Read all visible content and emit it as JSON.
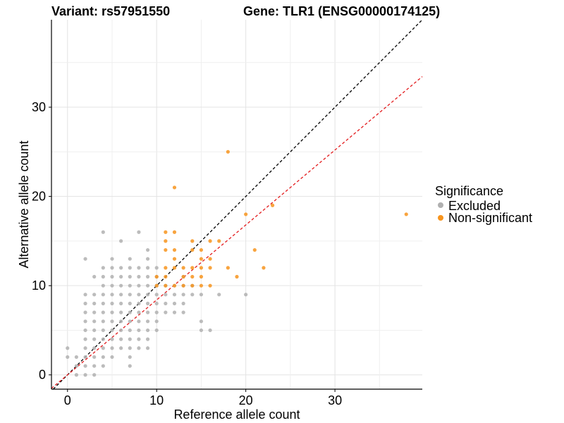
{
  "chart_data": {
    "type": "scatter",
    "title_variant": "Variant: rs57951550",
    "title_gene": "Gene: TLR1 (ENSG00000174125)",
    "xlabel": "Reference allele count",
    "ylabel": "Alternative allele count",
    "xlim": [
      -1.8,
      39.8
    ],
    "ylim": [
      -1.6,
      39.8
    ],
    "x_ticks": [
      0,
      10,
      20,
      30
    ],
    "y_ticks": [
      0,
      10,
      20,
      30
    ],
    "grid": true,
    "legend_position": "right",
    "legend_title": "Significance",
    "reference_lines": [
      {
        "name": "identity",
        "slope": 1.0,
        "intercept": 0,
        "color": "#000000",
        "style": "dashed"
      },
      {
        "name": "fit",
        "slope": 0.84,
        "intercept": 0,
        "color": "#e31a1c",
        "style": "dashed"
      }
    ],
    "series": [
      {
        "name": "Excluded",
        "color": "#b0b0b0",
        "points": [
          [
            0,
            3
          ],
          [
            0,
            2
          ],
          [
            1,
            2
          ],
          [
            1,
            1
          ],
          [
            1,
            0
          ],
          [
            2,
            2
          ],
          [
            2,
            1
          ],
          [
            2,
            0
          ],
          [
            2,
            3
          ],
          [
            2,
            4
          ],
          [
            2,
            5
          ],
          [
            2,
            6
          ],
          [
            2,
            7
          ],
          [
            2,
            8
          ],
          [
            2,
            9
          ],
          [
            2,
            13
          ],
          [
            3,
            0
          ],
          [
            3,
            1
          ],
          [
            3,
            2
          ],
          [
            3,
            3
          ],
          [
            3,
            4
          ],
          [
            3,
            5
          ],
          [
            3,
            6
          ],
          [
            3,
            7
          ],
          [
            3,
            8
          ],
          [
            3,
            9
          ],
          [
            3,
            11
          ],
          [
            4,
            1
          ],
          [
            4,
            2
          ],
          [
            4,
            3
          ],
          [
            4,
            4
          ],
          [
            4,
            5
          ],
          [
            4,
            6
          ],
          [
            4,
            7
          ],
          [
            4,
            8
          ],
          [
            4,
            9
          ],
          [
            4,
            10
          ],
          [
            4,
            11
          ],
          [
            4,
            12
          ],
          [
            4,
            16
          ],
          [
            5,
            2
          ],
          [
            5,
            3
          ],
          [
            5,
            4
          ],
          [
            5,
            5
          ],
          [
            5,
            6
          ],
          [
            5,
            7
          ],
          [
            5,
            8
          ],
          [
            5,
            9
          ],
          [
            5,
            10
          ],
          [
            5,
            11
          ],
          [
            5,
            12
          ],
          [
            5,
            13
          ],
          [
            6,
            3
          ],
          [
            6,
            4
          ],
          [
            6,
            5
          ],
          [
            6,
            6
          ],
          [
            6,
            7
          ],
          [
            6,
            8
          ],
          [
            6,
            9
          ],
          [
            6,
            10
          ],
          [
            6,
            11
          ],
          [
            6,
            12
          ],
          [
            6,
            15
          ],
          [
            7,
            1
          ],
          [
            7,
            2
          ],
          [
            7,
            3
          ],
          [
            7,
            4
          ],
          [
            7,
            5
          ],
          [
            7,
            6
          ],
          [
            7,
            7
          ],
          [
            7,
            8
          ],
          [
            7,
            9
          ],
          [
            7,
            10
          ],
          [
            7,
            11
          ],
          [
            7,
            12
          ],
          [
            7,
            13
          ],
          [
            8,
            3
          ],
          [
            8,
            4
          ],
          [
            8,
            5
          ],
          [
            8,
            6
          ],
          [
            8,
            7
          ],
          [
            8,
            8
          ],
          [
            8,
            9
          ],
          [
            8,
            10
          ],
          [
            8,
            11
          ],
          [
            8,
            12
          ],
          [
            8,
            16
          ],
          [
            9,
            3
          ],
          [
            9,
            4
          ],
          [
            9,
            5
          ],
          [
            9,
            6
          ],
          [
            9,
            7
          ],
          [
            9,
            8
          ],
          [
            9,
            9
          ],
          [
            9,
            10
          ],
          [
            9,
            11
          ],
          [
            9,
            12
          ],
          [
            9,
            13
          ],
          [
            9,
            14
          ],
          [
            10,
            5
          ],
          [
            10,
            6
          ],
          [
            10,
            7
          ],
          [
            10,
            8
          ],
          [
            10,
            9
          ],
          [
            10,
            10
          ],
          [
            10,
            11
          ],
          [
            10,
            12
          ],
          [
            11,
            7
          ],
          [
            11,
            8
          ],
          [
            11,
            9
          ],
          [
            11,
            10
          ],
          [
            12,
            7
          ],
          [
            12,
            8
          ],
          [
            12,
            9
          ],
          [
            12,
            10
          ],
          [
            13,
            7
          ],
          [
            13,
            8
          ],
          [
            13,
            9
          ],
          [
            13,
            10
          ],
          [
            13,
            11
          ],
          [
            14,
            9
          ],
          [
            14,
            10
          ],
          [
            15,
            5
          ],
          [
            15,
            6
          ],
          [
            15,
            9
          ],
          [
            16,
            5
          ],
          [
            17,
            9
          ],
          [
            20,
            9
          ]
        ]
      },
      {
        "name": "Non-significant",
        "color": "#f7941d",
        "points": [
          [
            10,
            11
          ],
          [
            10,
            10
          ],
          [
            11,
            16
          ],
          [
            11,
            15
          ],
          [
            11,
            14
          ],
          [
            11,
            12
          ],
          [
            11,
            11
          ],
          [
            11,
            10
          ],
          [
            12,
            21
          ],
          [
            12,
            16
          ],
          [
            12,
            14
          ],
          [
            12,
            13
          ],
          [
            12,
            12
          ],
          [
            12,
            10
          ],
          [
            13,
            12
          ],
          [
            13,
            11
          ],
          [
            13,
            10
          ],
          [
            14,
            15
          ],
          [
            14,
            14
          ],
          [
            14,
            12
          ],
          [
            14,
            11
          ],
          [
            14,
            10
          ],
          [
            15,
            14
          ],
          [
            15,
            13
          ],
          [
            15,
            12
          ],
          [
            15,
            11
          ],
          [
            15,
            10
          ],
          [
            16,
            15
          ],
          [
            16,
            13
          ],
          [
            16,
            12
          ],
          [
            16,
            10
          ],
          [
            17,
            15
          ],
          [
            18,
            25
          ],
          [
            18,
            12
          ],
          [
            19,
            11
          ],
          [
            20,
            18
          ],
          [
            21,
            14
          ],
          [
            22,
            12
          ],
          [
            23,
            19
          ],
          [
            38,
            18
          ]
        ]
      }
    ]
  }
}
